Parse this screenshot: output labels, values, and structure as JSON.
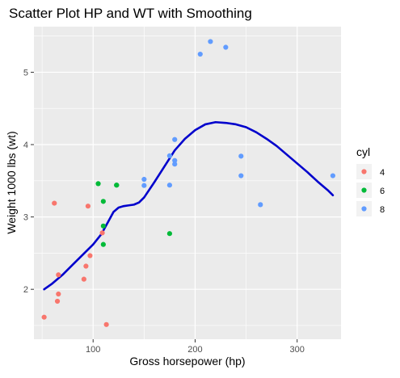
{
  "chart_data": {
    "type": "scatter",
    "title": "Scatter Plot HP and WT with Smoothing",
    "xlabel": "Gross horsepower (hp)",
    "ylabel": "Weight 1000 lbs (wt)",
    "xlim": [
      42,
      343
    ],
    "ylim": [
      1.31,
      5.63
    ],
    "x_ticks": [
      100,
      200,
      300
    ],
    "y_ticks": [
      2,
      3,
      4,
      5
    ],
    "grid": true,
    "legend": {
      "title": "cyl",
      "position": "right"
    },
    "series": [
      {
        "name": "4",
        "color": "#F8766D",
        "points": [
          [
            52,
            1.615
          ],
          [
            62,
            3.19
          ],
          [
            65,
            1.835
          ],
          [
            66,
            1.935
          ],
          [
            66,
            2.2
          ],
          [
            91,
            2.14
          ],
          [
            93,
            2.32
          ],
          [
            95,
            3.15
          ],
          [
            97,
            2.465
          ],
          [
            109,
            2.78
          ],
          [
            113,
            1.513
          ]
        ]
      },
      {
        "name": "6",
        "color": "#00BA38",
        "points": [
          [
            105,
            3.46
          ],
          [
            110,
            2.62
          ],
          [
            110,
            2.875
          ],
          [
            110,
            3.215
          ],
          [
            123,
            3.44
          ],
          [
            123,
            3.44
          ],
          [
            175,
            2.77
          ]
        ]
      },
      {
        "name": "8",
        "color": "#619CFF",
        "points": [
          [
            150,
            3.52
          ],
          [
            150,
            3.435
          ],
          [
            175,
            3.44
          ],
          [
            175,
            3.845
          ],
          [
            180,
            4.07
          ],
          [
            180,
            3.73
          ],
          [
            180,
            3.78
          ],
          [
            205,
            5.25
          ],
          [
            215,
            5.424
          ],
          [
            230,
            5.345
          ],
          [
            245,
            3.57
          ],
          [
            245,
            3.84
          ],
          [
            264,
            3.17
          ],
          [
            335,
            3.57
          ]
        ]
      }
    ],
    "smooth_line": {
      "color": "#0000CC",
      "points": [
        [
          52,
          2.0
        ],
        [
          60,
          2.08
        ],
        [
          70,
          2.2
        ],
        [
          80,
          2.34
        ],
        [
          90,
          2.48
        ],
        [
          100,
          2.62
        ],
        [
          108,
          2.76
        ],
        [
          115,
          2.94
        ],
        [
          120,
          3.07
        ],
        [
          125,
          3.13
        ],
        [
          130,
          3.15
        ],
        [
          135,
          3.16
        ],
        [
          140,
          3.17
        ],
        [
          145,
          3.2
        ],
        [
          150,
          3.27
        ],
        [
          160,
          3.48
        ],
        [
          170,
          3.7
        ],
        [
          180,
          3.92
        ],
        [
          190,
          4.08
        ],
        [
          200,
          4.2
        ],
        [
          210,
          4.28
        ],
        [
          220,
          4.31
        ],
        [
          230,
          4.3
        ],
        [
          240,
          4.28
        ],
        [
          250,
          4.24
        ],
        [
          260,
          4.17
        ],
        [
          270,
          4.08
        ],
        [
          280,
          3.98
        ],
        [
          290,
          3.86
        ],
        [
          300,
          3.74
        ],
        [
          310,
          3.62
        ],
        [
          320,
          3.49
        ],
        [
          330,
          3.37
        ],
        [
          335,
          3.3
        ]
      ]
    }
  }
}
